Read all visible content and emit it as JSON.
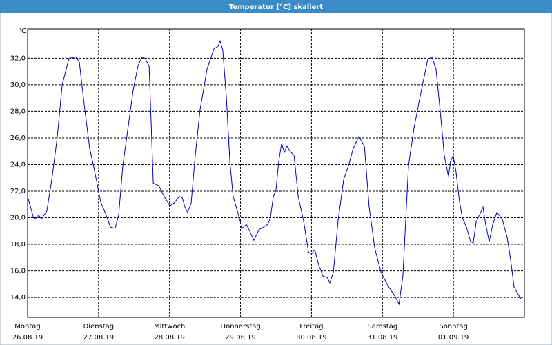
{
  "chart_data": {
    "type": "line",
    "title": "Temperatur [°C] skaliert",
    "y_label": "°C",
    "xlim": [
      0,
      168
    ],
    "ylim": [
      12.5,
      34.2
    ],
    "grid": true,
    "xticks": [
      {
        "value": 0,
        "label": "Montag"
      },
      {
        "value": 24,
        "label": "Dienstag"
      },
      {
        "value": 48,
        "label": "Mittwoch"
      },
      {
        "value": 72,
        "label": "Donnerstag"
      },
      {
        "value": 96,
        "label": "Freitag"
      },
      {
        "value": 120,
        "label": "Samstag"
      },
      {
        "value": 144,
        "label": "Sonntag"
      }
    ],
    "xtick_dates": [
      "26.08.19",
      "27.08.19",
      "28.08.19",
      "29.08.19",
      "30.08.19",
      "31.08.19",
      "01.09.19"
    ],
    "yticks": [
      {
        "value": 14,
        "label": "14,0"
      },
      {
        "value": 16,
        "label": "16,0"
      },
      {
        "value": 18,
        "label": "18,0"
      },
      {
        "value": 20,
        "label": "20,0"
      },
      {
        "value": 22,
        "label": "22,0"
      },
      {
        "value": 24,
        "label": "24,0"
      },
      {
        "value": 26,
        "label": "26,0"
      },
      {
        "value": 28,
        "label": "28,0"
      },
      {
        "value": 30,
        "label": "30,0"
      },
      {
        "value": 32,
        "label": "32,0"
      }
    ],
    "x": [
      0,
      1,
      2,
      3,
      3.7,
      4.7,
      6.5,
      8.2,
      10,
      11.7,
      14,
      16.3,
      17.5,
      19.1,
      21,
      22.2,
      23.3,
      24.7,
      26.4,
      28,
      29.6,
      30.8,
      32.2,
      33.8,
      35.7,
      37.3,
      38.7,
      39.7,
      41.1,
      42.5,
      44.4,
      46.2,
      48.1,
      49.5,
      51.3,
      52.3,
      53.2,
      54.1,
      55.3,
      56.7,
      58.3,
      60.7,
      63,
      64.4,
      65.1,
      66,
      67.2,
      68.4,
      69.5,
      71.2,
      72.6,
      74,
      75.1,
      76.5,
      78.2,
      79.8,
      81.2,
      82.1,
      83.1,
      84,
      84.9,
      85.9,
      86.8,
      87.7,
      88.7,
      90.1,
      91.5,
      93.3,
      95,
      96.1,
      97.1,
      98.5,
      99.9,
      101.3,
      102.2,
      103.4,
      105,
      106.9,
      108.5,
      110.1,
      112,
      113.9,
      115.5,
      117.4,
      119.5,
      121.8,
      124.2,
      125.6,
      126.9,
      128.8,
      130.7,
      133,
      135.3,
      136.7,
      138.1,
      139.5,
      140.9,
      142.3,
      143,
      143.9,
      144.9,
      146,
      147,
      148.4,
      149.8,
      150.7,
      151.7,
      152.8,
      154,
      154.9,
      156.1,
      157.3,
      158.7,
      160.5,
      162.2,
      163.3,
      164.5,
      165.7,
      166.8
    ],
    "series": [
      {
        "name": "Temperatur",
        "color": "#0000c0",
        "values": [
          21.6,
          20.8,
          20.0,
          19.9,
          20.2,
          19.9,
          20.5,
          22.9,
          26,
          30,
          32,
          32.1,
          31.7,
          28.6,
          25.2,
          24,
          22.8,
          21.2,
          20.3,
          19.3,
          19.2,
          20.2,
          23.9,
          26.5,
          29.6,
          31.4,
          32.1,
          32,
          31.4,
          22.6,
          22.4,
          21.6,
          20.9,
          21.1,
          21.6,
          21.5,
          20.8,
          20.4,
          21.1,
          24.7,
          28.1,
          31.2,
          32.7,
          32.9,
          33.3,
          32.6,
          29.1,
          24.2,
          21.6,
          20.3,
          19.2,
          19.5,
          19.0,
          18.3,
          19.1,
          19.3,
          19.5,
          20.0,
          21.6,
          22.1,
          24.2,
          25.6,
          24.9,
          25.4,
          25.0,
          24.7,
          21.6,
          19.8,
          17.4,
          17.3,
          17.6,
          16.4,
          15.6,
          15.5,
          15.1,
          15.9,
          19.8,
          22.9,
          23.9,
          25.2,
          26.1,
          25.4,
          20.8,
          17.7,
          15.9,
          14.9,
          14.1,
          13.5,
          15.6,
          23.9,
          26.8,
          29.4,
          31.9,
          32.1,
          31.2,
          28.1,
          24.7,
          23.1,
          24.2,
          24.7,
          23.4,
          21.3,
          20.0,
          19.3,
          18.2,
          18.1,
          19.7,
          20.2,
          20.8,
          19.5,
          18.2,
          19.5,
          20.4,
          19.9,
          18.5,
          16.9,
          14.8,
          14.3,
          13.9
        ]
      }
    ]
  }
}
